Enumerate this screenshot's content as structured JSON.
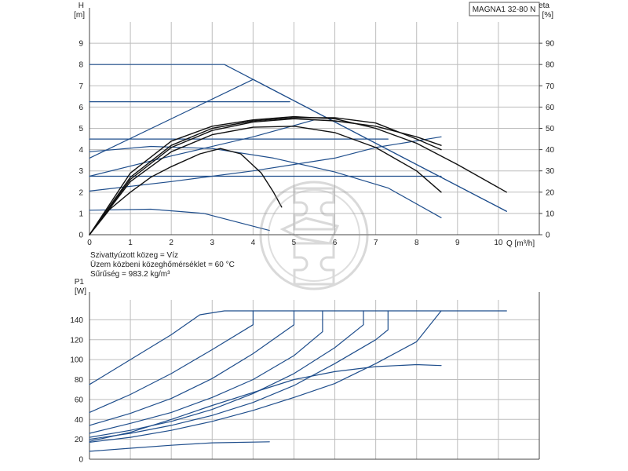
{
  "model_label": "MAGNA1 32-80 N",
  "medium_info": [
    "Szivattyúzott közeg = Víz",
    "Üzem közbeni közeghőmérséklet = 60 °C",
    "Sűrűség = 983.2 kg/m³"
  ],
  "colors": {
    "blue": "#1f4e8c",
    "black": "#111111",
    "grid": "#bdbdbd"
  },
  "chart_data": [
    {
      "type": "line",
      "x_label": "Q [m³/h]",
      "y_label": [
        "H",
        "[m]"
      ],
      "y2_label": [
        "eta",
        "[%]"
      ],
      "xlim": [
        0,
        11
      ],
      "ylim": [
        0,
        10
      ],
      "y2lim": [
        0,
        100
      ],
      "x_ticks": [
        0,
        1,
        2,
        3,
        4,
        5,
        6,
        7,
        8,
        9,
        10
      ],
      "y_ticks": [
        0,
        1,
        2,
        3,
        4,
        5,
        6,
        7,
        8,
        9
      ],
      "y2_ticks": [
        0,
        10,
        20,
        30,
        40,
        50,
        60,
        70,
        80,
        90
      ],
      "grid": true,
      "series": [
        {
          "color": "blue",
          "points": [
            [
              0,
              8.0
            ],
            [
              3.3,
              8.0
            ],
            [
              10.2,
              1.1
            ]
          ]
        },
        {
          "color": "blue",
          "points": [
            [
              0,
              6.25
            ],
            [
              4.9,
              6.25
            ]
          ]
        },
        {
          "color": "blue",
          "points": [
            [
              0,
              4.5
            ],
            [
              7.3,
              4.5
            ]
          ]
        },
        {
          "color": "blue",
          "points": [
            [
              0,
              2.75
            ],
            [
              8.6,
              2.75
            ]
          ]
        },
        {
          "color": "blue",
          "points": [
            [
              0,
              3.6
            ],
            [
              4.0,
              7.3
            ],
            [
              10.2,
              1.1
            ]
          ]
        },
        {
          "color": "blue",
          "points": [
            [
              0,
              3.9
            ],
            [
              1.5,
              4.15
            ],
            [
              3.0,
              4.05
            ],
            [
              4.5,
              3.6
            ],
            [
              6.0,
              2.95
            ],
            [
              7.3,
              2.2
            ],
            [
              8.6,
              0.8
            ]
          ]
        },
        {
          "color": "blue",
          "points": [
            [
              0,
              1.15
            ],
            [
              1.5,
              1.2
            ],
            [
              2.8,
              1.0
            ],
            [
              4.4,
              0.2
            ]
          ]
        },
        {
          "color": "blue",
          "points": [
            [
              0,
              2.05
            ],
            [
              2.0,
              2.5
            ],
            [
              4.0,
              3.0
            ],
            [
              6.0,
              3.6
            ],
            [
              7.0,
              4.1
            ],
            [
              8.6,
              4.6
            ]
          ]
        },
        {
          "color": "blue",
          "points": [
            [
              0,
              2.75
            ],
            [
              2.0,
              3.7
            ],
            [
              4.0,
              4.6
            ],
            [
              5.5,
              5.4
            ]
          ]
        },
        {
          "color": "black",
          "points": [
            [
              0,
              0
            ],
            [
              0.5,
              1.2
            ],
            [
              1.0,
              2.0
            ],
            [
              1.5,
              2.7
            ],
            [
              2.0,
              3.2
            ],
            [
              2.7,
              3.8
            ],
            [
              3.2,
              4.05
            ],
            [
              3.7,
              3.8
            ],
            [
              4.2,
              2.9
            ],
            [
              4.5,
              2.0
            ],
            [
              4.7,
              1.3
            ]
          ]
        },
        {
          "color": "black",
          "points": [
            [
              0,
              0
            ],
            [
              1,
              2.5
            ],
            [
              2,
              3.9
            ],
            [
              3,
              4.7
            ],
            [
              4,
              5.05
            ],
            [
              5,
              5.1
            ],
            [
              6,
              4.8
            ],
            [
              7,
              4.1
            ],
            [
              8,
              3.0
            ],
            [
              8.6,
              2.0
            ]
          ]
        },
        {
          "color": "black",
          "points": [
            [
              0,
              0
            ],
            [
              1,
              2.6
            ],
            [
              2,
              4.1
            ],
            [
              3,
              4.9
            ],
            [
              4,
              5.3
            ],
            [
              5,
              5.45
            ],
            [
              6,
              5.35
            ],
            [
              7,
              5.1
            ],
            [
              8,
              4.6
            ],
            [
              8.6,
              4.2
            ]
          ]
        },
        {
          "color": "black",
          "points": [
            [
              0,
              0
            ],
            [
              1,
              2.7
            ],
            [
              2,
              4.2
            ],
            [
              3,
              5.0
            ],
            [
              4,
              5.35
            ],
            [
              5,
              5.5
            ],
            [
              6,
              5.5
            ],
            [
              7,
              5.25
            ],
            [
              8,
              4.5
            ],
            [
              8.6,
              4.0
            ]
          ]
        },
        {
          "color": "black",
          "points": [
            [
              0,
              0
            ],
            [
              1,
              2.9
            ],
            [
              2,
              4.4
            ],
            [
              3,
              5.1
            ],
            [
              4,
              5.4
            ],
            [
              5,
              5.55
            ],
            [
              6,
              5.45
            ],
            [
              7,
              5.0
            ],
            [
              8,
              4.3
            ],
            [
              9,
              3.3
            ],
            [
              10.2,
              2.0
            ]
          ]
        }
      ]
    },
    {
      "type": "line",
      "y_label": [
        "P1",
        "[W]"
      ],
      "xlim": [
        0,
        11
      ],
      "ylim": [
        0,
        160
      ],
      "y_ticks": [
        0,
        20,
        40,
        60,
        80,
        100,
        120,
        140
      ],
      "grid": true,
      "series": [
        {
          "color": "blue",
          "points": [
            [
              0,
              75
            ],
            [
              1,
              100
            ],
            [
              2,
              125
            ],
            [
              2.7,
              145
            ],
            [
              3.3,
              149
            ],
            [
              10.2,
              149
            ]
          ]
        },
        {
          "color": "blue",
          "points": [
            [
              0,
              47
            ],
            [
              1,
              65
            ],
            [
              2,
              86
            ],
            [
              3,
              110
            ],
            [
              4,
              135
            ],
            [
              4,
              149
            ]
          ]
        },
        {
          "color": "blue",
          "points": [
            [
              0,
              34
            ],
            [
              1,
              46
            ],
            [
              2,
              61
            ],
            [
              3,
              81
            ],
            [
              4,
              106
            ],
            [
              5,
              135
            ],
            [
              5,
              149
            ]
          ]
        },
        {
          "color": "blue",
          "points": [
            [
              0,
              26
            ],
            [
              1,
              36
            ],
            [
              2,
              47
            ],
            [
              3,
              62
            ],
            [
              4,
              80
            ],
            [
              5,
              104
            ],
            [
              5.7,
              128
            ],
            [
              5.7,
              149
            ]
          ]
        },
        {
          "color": "blue",
          "points": [
            [
              0,
              22
            ],
            [
              1,
              29
            ],
            [
              2,
              38
            ],
            [
              3,
              50
            ],
            [
              4,
              66
            ],
            [
              5,
              86
            ],
            [
              6,
              112
            ],
            [
              6.7,
              135
            ],
            [
              6.7,
              149
            ]
          ]
        },
        {
          "color": "blue",
          "points": [
            [
              0,
              20
            ],
            [
              1,
              26
            ],
            [
              2,
              34
            ],
            [
              3,
              44
            ],
            [
              4,
              57
            ],
            [
              5,
              74
            ],
            [
              6,
              96
            ],
            [
              7,
              120
            ],
            [
              7.3,
              130
            ],
            [
              7.3,
              149
            ]
          ]
        },
        {
          "color": "blue",
          "points": [
            [
              0,
              17
            ],
            [
              1,
              22
            ],
            [
              2,
              29
            ],
            [
              3,
              38
            ],
            [
              4,
              49
            ],
            [
              5,
              62
            ],
            [
              6,
              76
            ],
            [
              7,
              96
            ],
            [
              8,
              118
            ],
            [
              8.6,
              149
            ]
          ]
        },
        {
          "color": "blue",
          "points": [
            [
              0,
              18
            ],
            [
              1,
              27
            ],
            [
              2,
              40
            ],
            [
              3,
              54
            ],
            [
              4,
              67
            ],
            [
              5,
              80
            ],
            [
              6,
              88
            ],
            [
              7,
              93
            ],
            [
              8,
              95
            ],
            [
              8.6,
              94
            ]
          ]
        },
        {
          "color": "blue",
          "points": [
            [
              0,
              8
            ],
            [
              1,
              11
            ],
            [
              2,
              14
            ],
            [
              3,
              16.5
            ],
            [
              4.4,
              17.5
            ]
          ]
        }
      ]
    }
  ]
}
